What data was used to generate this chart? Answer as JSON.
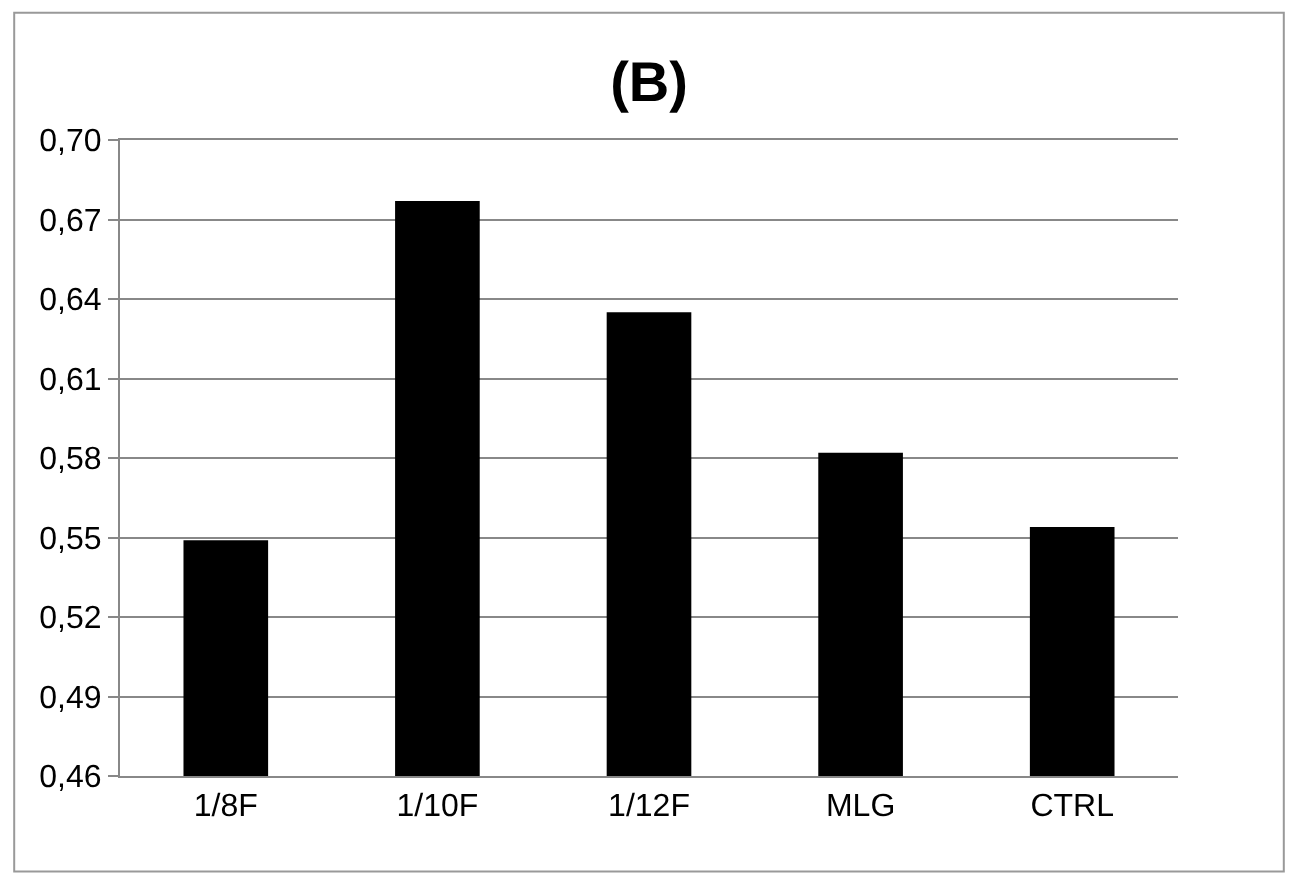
{
  "chart_data": {
    "type": "bar",
    "title": "(B)",
    "categories": [
      "1/8F",
      "1/10F",
      "1/12F",
      "MLG",
      "CTRL"
    ],
    "values": [
      0.549,
      0.677,
      0.635,
      0.582,
      0.554
    ],
    "color": "#000000",
    "ylim": [
      0.46,
      0.7
    ],
    "yticks": [
      {
        "value": 0.46,
        "label": "0,46"
      },
      {
        "value": 0.49,
        "label": "0,49"
      },
      {
        "value": 0.52,
        "label": "0,52"
      },
      {
        "value": 0.55,
        "label": "0,55"
      },
      {
        "value": 0.58,
        "label": "0,58"
      },
      {
        "value": 0.61,
        "label": "0,61"
      },
      {
        "value": 0.64,
        "label": "0,64"
      },
      {
        "value": 0.67,
        "label": "0,67"
      },
      {
        "value": 0.7,
        "label": "0,70"
      }
    ],
    "grid": "y"
  }
}
